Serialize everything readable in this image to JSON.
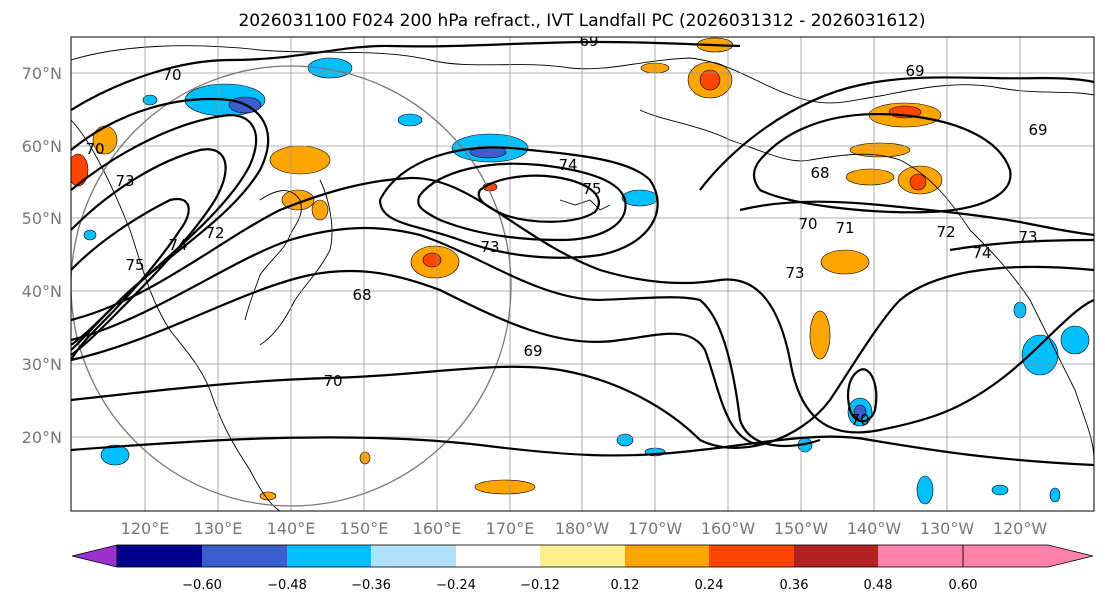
{
  "title": "2026031100 F024 200 hPa refract., IVT Landfall PC (2026031312 - 2026031612)",
  "lat_labels": [
    "70°N",
    "60°N",
    "50°N",
    "40°N",
    "30°N",
    "20°N"
  ],
  "lon_labels": [
    "120°E",
    "130°E",
    "140°E",
    "150°E",
    "160°E",
    "170°E",
    "180°W",
    "170°W",
    "160°W",
    "150°W",
    "140°W",
    "130°W",
    "120°W"
  ],
  "colorbar": {
    "ticks": [
      "−0.60",
      "−0.48",
      "−0.36",
      "−0.24",
      "−0.12",
      "0.12",
      "0.24",
      "0.36",
      "0.48",
      "0.60"
    ],
    "colors": [
      "#9932cc",
      "#00008b",
      "#3a5fcd",
      "#00bfff",
      "#b0e2ff",
      "#ffffff",
      "#ffec8b",
      "#ffa500",
      "#ff4500",
      "#b22222",
      "#ff82ab"
    ]
  },
  "contour_labels": [
    "69",
    "70",
    "69",
    "69",
    "70",
    "73",
    "75",
    "74",
    "72",
    "74",
    "75",
    "73",
    "68",
    "68",
    "70",
    "71",
    "72",
    "73",
    "74",
    "73",
    "69",
    "70",
    "70"
  ],
  "colors": {
    "fill_orange": "#ffa500",
    "fill_lightorange": "#ffec8b",
    "fill_red": "#ff4500",
    "fill_blue": "#00bfff",
    "fill_lightblue": "#b0e2ff",
    "fill_darkblue": "#3a5fcd"
  }
}
